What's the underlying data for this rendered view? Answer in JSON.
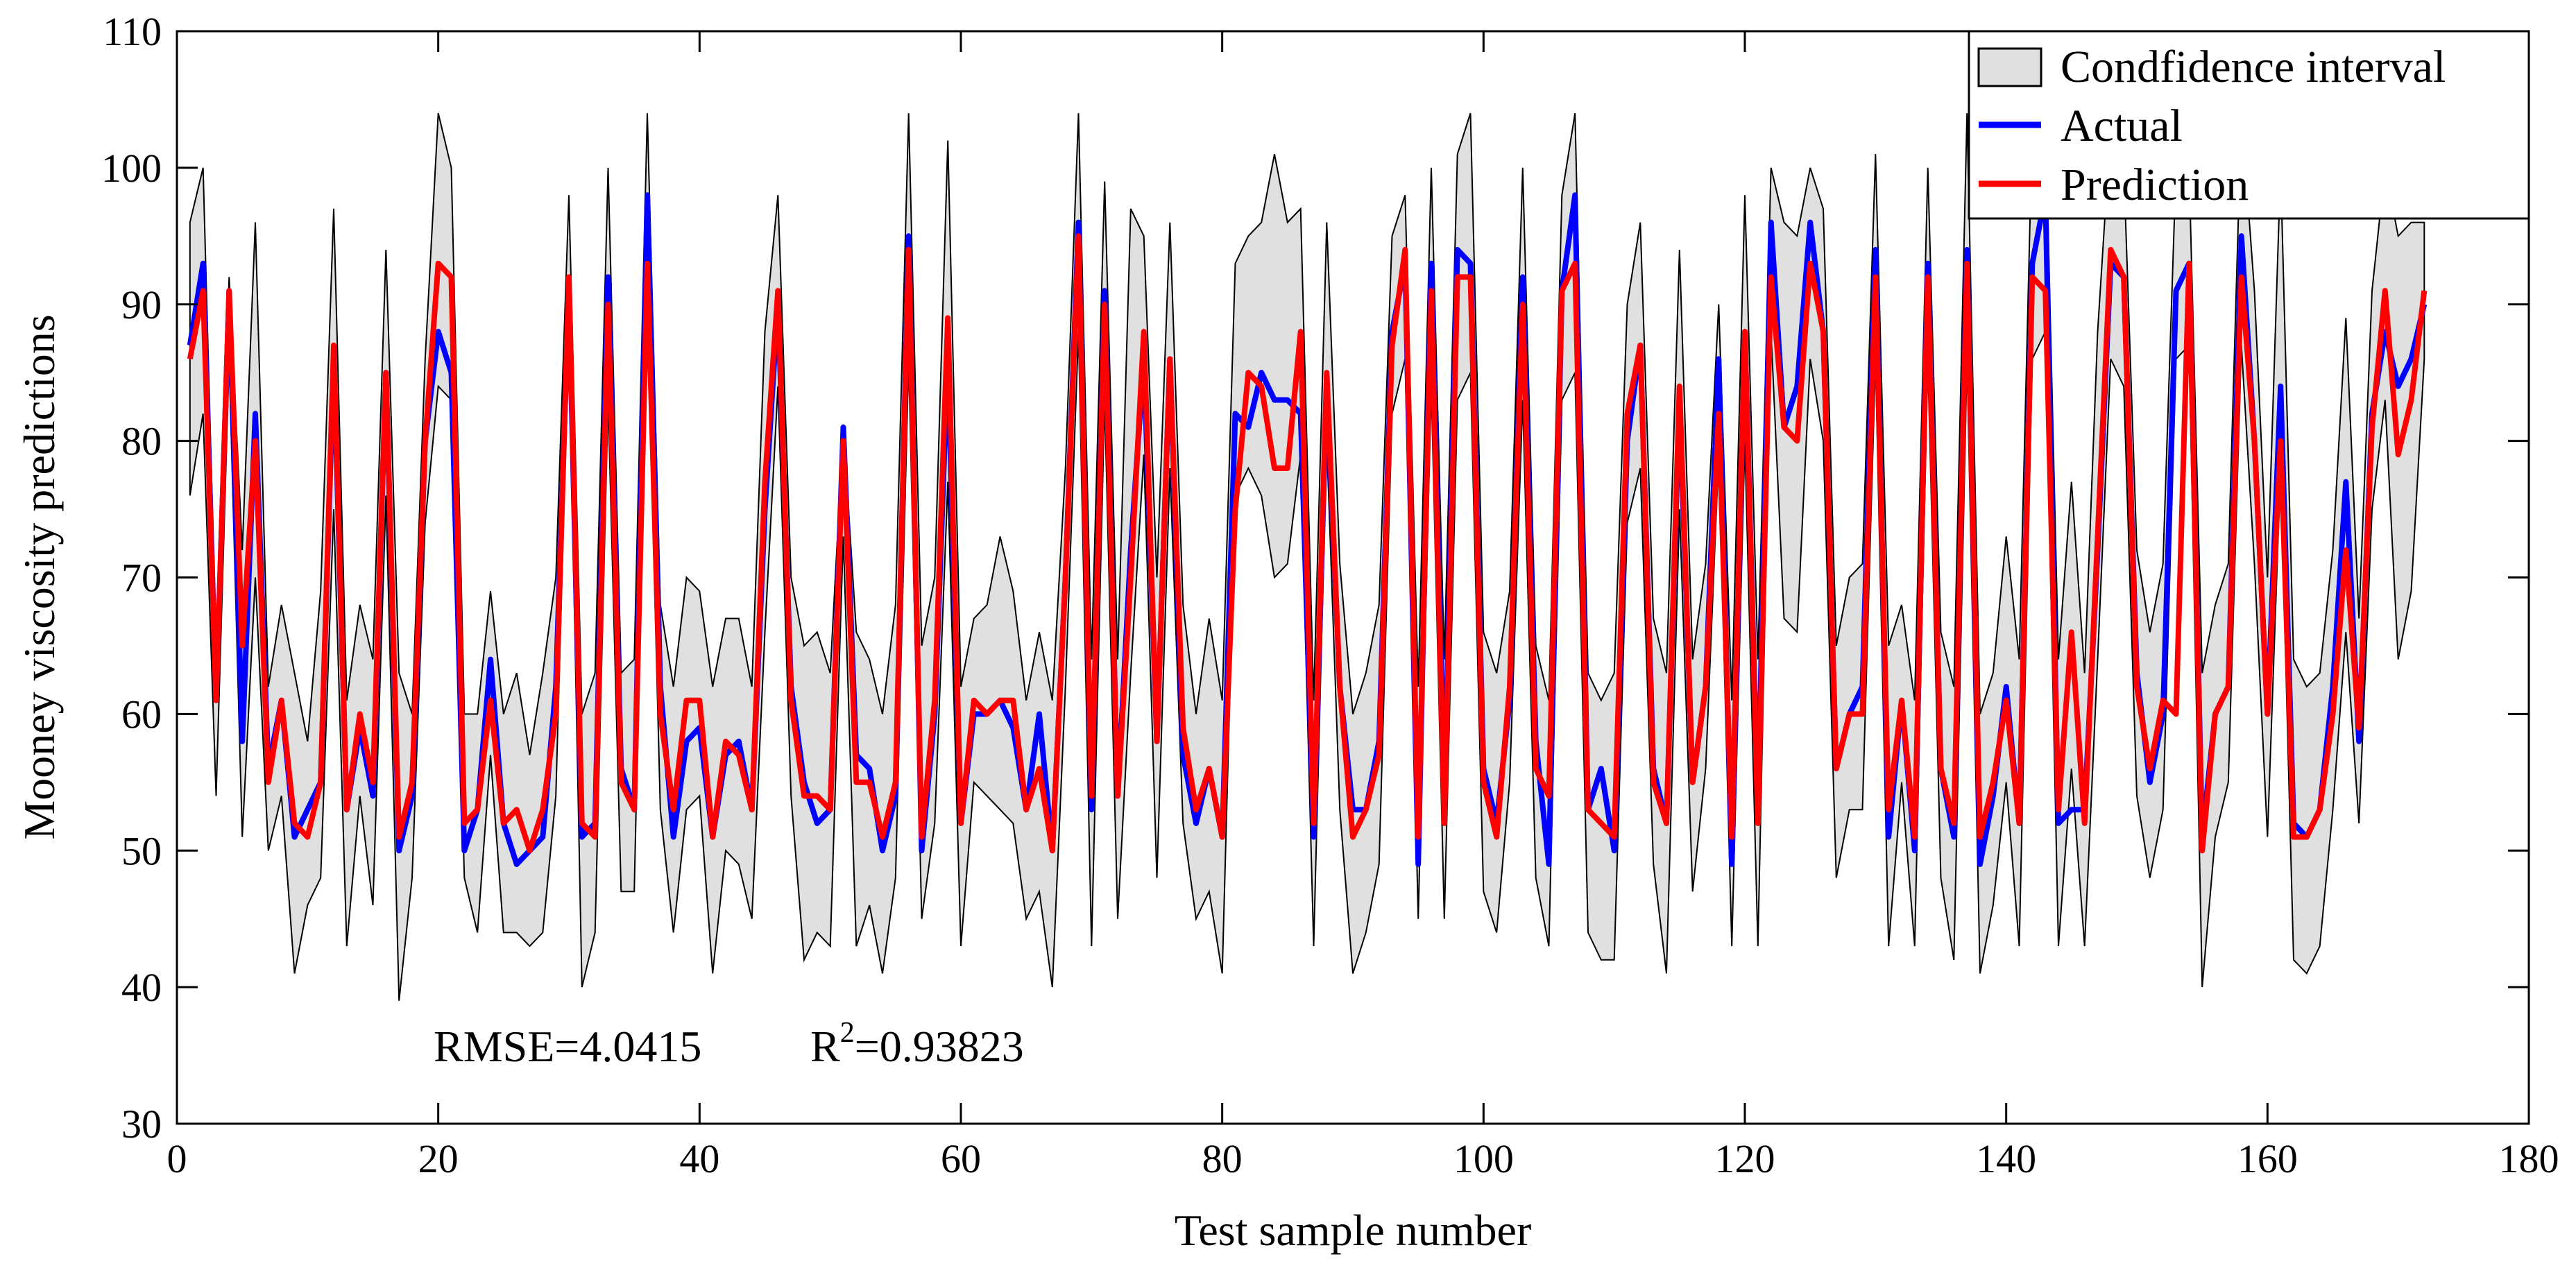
{
  "chart_data": {
    "type": "line",
    "title": "",
    "xlabel": "Test sample number",
    "ylabel": "Mooney viscosity predictions",
    "xlim": [
      0,
      180
    ],
    "ylim": [
      30,
      110
    ],
    "xticks": [
      0,
      20,
      40,
      60,
      80,
      100,
      120,
      140,
      160,
      180
    ],
    "yticks": [
      30,
      40,
      50,
      60,
      70,
      80,
      90,
      100,
      110
    ],
    "grid": false,
    "legend_position": "top-right",
    "legend": {
      "ci": "Condfidence interval",
      "actual": "Actual",
      "prediction": "Prediction"
    },
    "annotation": {
      "rmse": "RMSE=4.0415",
      "r2_prefix": "R",
      "r2_sup": "2",
      "r2_value": "=0.93823"
    },
    "colors": {
      "actual": "#0000ff",
      "prediction": "#ff0000",
      "band_fill": "#e0e0e0",
      "band_edge": "#000000"
    },
    "x": [
      1,
      2,
      3,
      4,
      5,
      6,
      7,
      8,
      9,
      10,
      11,
      12,
      13,
      14,
      15,
      16,
      17,
      18,
      19,
      20,
      21,
      22,
      23,
      24,
      25,
      26,
      27,
      28,
      29,
      30,
      31,
      32,
      33,
      34,
      35,
      36,
      37,
      38,
      39,
      40,
      41,
      42,
      43,
      44,
      45,
      46,
      47,
      48,
      49,
      50,
      51,
      52,
      53,
      54,
      55,
      56,
      57,
      58,
      59,
      60,
      61,
      62,
      63,
      64,
      65,
      66,
      67,
      68,
      69,
      70,
      71,
      72,
      73,
      74,
      75,
      76,
      77,
      78,
      79,
      80,
      81,
      82,
      83,
      84,
      85,
      86,
      87,
      88,
      89,
      90,
      91,
      92,
      93,
      94,
      95,
      96,
      97,
      98,
      99,
      100,
      101,
      102,
      103,
      104,
      105,
      106,
      107,
      108,
      109,
      110,
      111,
      112,
      113,
      114,
      115,
      116,
      117,
      118,
      119,
      120,
      121,
      122,
      123,
      124,
      125,
      126,
      127,
      128,
      129,
      130,
      131,
      132,
      133,
      134,
      135,
      136,
      137,
      138,
      139,
      140,
      141,
      142,
      143,
      144,
      145,
      146,
      147,
      148,
      149,
      150,
      151,
      152,
      153,
      154,
      155,
      156,
      157,
      158,
      159,
      160,
      161,
      162,
      163,
      164,
      165,
      166,
      167,
      168,
      169,
      170,
      171,
      172
    ],
    "series": [
      {
        "name": "Actual",
        "values": [
          87,
          93,
          61,
          91,
          58,
          82,
          56,
          61,
          51,
          53,
          55,
          86,
          53,
          59,
          54,
          85,
          50,
          54,
          80,
          88,
          85,
          50,
          53,
          64,
          52,
          49,
          50,
          51,
          62,
          91,
          51,
          52,
          92,
          56,
          53,
          98,
          62,
          51,
          58,
          59,
          51,
          57,
          58,
          53,
          75,
          90,
          62,
          55,
          52,
          53,
          81,
          57,
          56,
          50,
          54,
          95,
          50,
          60,
          86,
          52,
          60,
          60,
          61,
          59,
          53,
          60,
          50,
          70,
          96,
          53,
          91,
          54,
          72,
          86,
          58,
          86,
          57,
          52,
          56,
          51,
          82,
          81,
          85,
          83,
          83,
          82,
          51,
          84,
          62,
          53,
          53,
          58,
          88,
          93,
          49,
          93,
          54,
          94,
          93,
          56,
          52,
          61,
          92,
          58,
          49,
          91,
          98,
          53,
          56,
          50,
          80,
          87,
          56,
          52,
          83,
          55,
          62,
          86,
          49,
          88,
          53,
          96,
          81,
          84,
          96,
          88,
          56,
          60,
          62,
          94,
          51,
          61,
          50,
          93,
          56,
          51,
          94,
          49,
          54,
          62,
          52,
          93,
          98,
          52,
          53,
          53,
          72,
          93,
          92,
          63,
          55,
          60,
          91,
          93,
          51,
          60,
          62,
          95,
          80,
          60,
          84,
          52,
          51,
          53,
          62,
          77,
          58,
          82,
          88,
          84,
          86,
          90
        ]
      },
      {
        "name": "Prediction",
        "values": [
          86,
          91,
          61,
          91,
          65,
          80,
          55,
          61,
          52,
          51,
          55,
          87,
          53,
          60,
          55,
          85,
          51,
          55,
          80,
          93,
          92,
          52,
          53,
          61,
          52,
          53,
          50,
          53,
          60,
          92,
          52,
          51,
          90,
          55,
          53,
          93,
          60,
          53,
          61,
          61,
          51,
          58,
          57,
          53,
          77,
          91,
          61,
          54,
          54,
          53,
          80,
          55,
          55,
          51,
          55,
          94,
          51,
          61,
          89,
          52,
          61,
          60,
          61,
          61,
          53,
          56,
          50,
          70,
          95,
          54,
          90,
          54,
          70,
          88,
          58,
          86,
          59,
          53,
          56,
          51,
          75,
          85,
          84,
          78,
          78,
          88,
          52,
          85,
          62,
          51,
          53,
          57,
          87,
          94,
          51,
          91,
          52,
          92,
          92,
          55,
          51,
          62,
          90,
          56,
          54,
          91,
          93,
          53,
          52,
          51,
          82,
          87,
          55,
          52,
          84,
          55,
          62,
          82,
          51,
          88,
          52,
          92,
          81,
          80,
          93,
          88,
          56,
          60,
          60,
          92,
          53,
          61,
          51,
          92,
          56,
          52,
          93,
          51,
          55,
          61,
          52,
          92,
          91,
          53,
          66,
          52,
          73,
          94,
          92,
          62,
          56,
          61,
          60,
          93,
          50,
          60,
          62,
          92,
          80,
          60,
          80,
          51,
          51,
          53,
          60,
          72,
          59,
          81,
          91,
          79,
          83,
          91
        ]
      },
      {
        "name": "CI upper",
        "values": [
          96,
          100,
          65,
          92,
          72,
          96,
          62,
          68,
          63,
          58,
          69,
          97,
          61,
          68,
          64,
          94,
          63,
          60,
          86,
          104,
          100,
          60,
          60,
          69,
          60,
          63,
          57,
          63,
          70,
          98,
          60,
          63,
          100,
          63,
          64,
          104,
          68,
          62,
          70,
          69,
          62,
          67,
          67,
          62,
          88,
          98,
          70,
          65,
          66,
          63,
          81,
          66,
          64,
          60,
          68,
          104,
          65,
          70,
          102,
          62,
          67,
          68,
          73,
          69,
          61,
          66,
          61,
          78,
          104,
          64,
          99,
          64,
          97,
          95,
          70,
          96,
          68,
          60,
          67,
          61,
          93,
          95,
          96,
          101,
          96,
          97,
          61,
          96,
          71,
          60,
          63,
          68,
          95,
          98,
          62,
          100,
          64,
          101,
          104,
          66,
          63,
          69,
          100,
          65,
          61,
          98,
          104,
          63,
          61,
          63,
          90,
          96,
          67,
          63,
          94,
          64,
          71,
          90,
          61,
          98,
          64,
          100,
          96,
          95,
          100,
          97,
          65,
          70,
          71,
          101,
          65,
          68,
          61,
          100,
          66,
          62,
          104,
          60,
          63,
          73,
          64,
          103,
          104,
          64,
          77,
          63,
          88,
          103,
          100,
          72,
          66,
          71,
          100,
          100,
          63,
          68,
          71,
          104,
          91,
          70,
          100,
          64,
          62,
          63,
          72,
          89,
          67,
          91,
          100,
          95,
          96,
          96
        ]
      },
      {
        "name": "CI lower",
        "values": [
          76,
          82,
          54,
          86,
          51,
          70,
          50,
          54,
          41,
          46,
          48,
          75,
          43,
          54,
          46,
          76,
          39,
          48,
          74,
          84,
          83,
          48,
          44,
          57,
          44,
          44,
          43,
          44,
          54,
          88,
          40,
          44,
          83,
          47,
          47,
          90,
          53,
          44,
          53,
          54,
          41,
          50,
          49,
          45,
          66,
          84,
          54,
          42,
          44,
          43,
          73,
          43,
          46,
          41,
          48,
          86,
          45,
          52,
          77,
          43,
          55,
          54,
          53,
          52,
          45,
          47,
          40,
          62,
          88,
          43,
          83,
          45,
          63,
          79,
          48,
          78,
          52,
          45,
          47,
          41,
          76,
          78,
          76,
          70,
          71,
          79,
          43,
          80,
          53,
          41,
          44,
          49,
          82,
          86,
          45,
          84,
          45,
          83,
          85,
          47,
          44,
          55,
          83,
          48,
          43,
          83,
          85,
          44,
          42,
          42,
          74,
          78,
          49,
          41,
          75,
          47,
          56,
          79,
          43,
          80,
          43,
          88,
          67,
          66,
          86,
          80,
          48,
          53,
          53,
          86,
          43,
          55,
          43,
          86,
          48,
          42,
          86,
          41,
          46,
          55,
          43,
          86,
          88,
          43,
          56,
          43,
          64,
          86,
          84,
          54,
          48,
          53,
          86,
          87,
          40,
          51,
          55,
          87,
          71,
          51,
          78,
          42,
          41,
          43,
          53,
          66,
          52,
          75,
          83,
          64,
          69,
          86
        ]
      }
    ]
  }
}
